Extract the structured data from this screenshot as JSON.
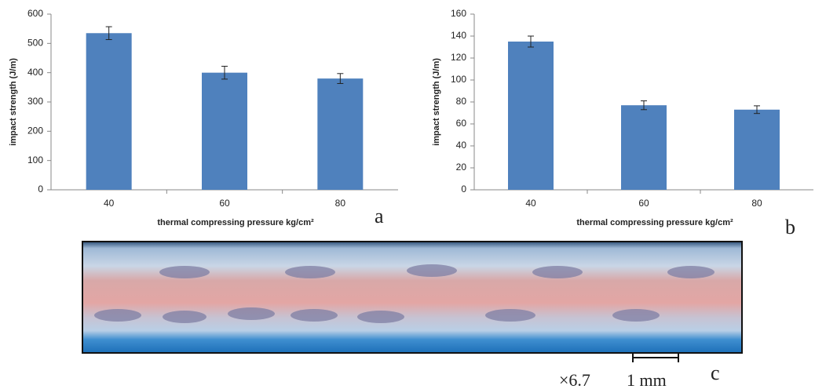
{
  "chart_data": [
    {
      "type": "bar",
      "label": "a",
      "y_label": "impact strength (J/m)",
      "x_label": "thermal compressing pressure kg/cm²",
      "categories": [
        "40",
        "60",
        "80"
      ],
      "values": [
        535,
        400,
        380
      ],
      "errors": [
        22,
        22,
        17
      ],
      "color": "#4f81bd",
      "ylim": [
        0,
        600
      ],
      "yticks": [
        0,
        100,
        200,
        300,
        400,
        500,
        600
      ],
      "grid": false
    },
    {
      "type": "bar",
      "label": "b",
      "y_label": "impact strength (J/m)",
      "x_label": "thermal compressing pressure kg/cm²",
      "categories": [
        "40",
        "60",
        "80"
      ],
      "values": [
        135,
        77,
        73
      ],
      "errors": [
        5,
        4,
        3.5
      ],
      "color": "#4f81bd",
      "ylim": [
        0,
        160
      ],
      "yticks": [
        0,
        20,
        40,
        60,
        80,
        100,
        120,
        140,
        160
      ],
      "grid": false
    }
  ],
  "photo": {
    "label": "c",
    "magnification": "×6.7",
    "scale_bar": "1 mm"
  }
}
